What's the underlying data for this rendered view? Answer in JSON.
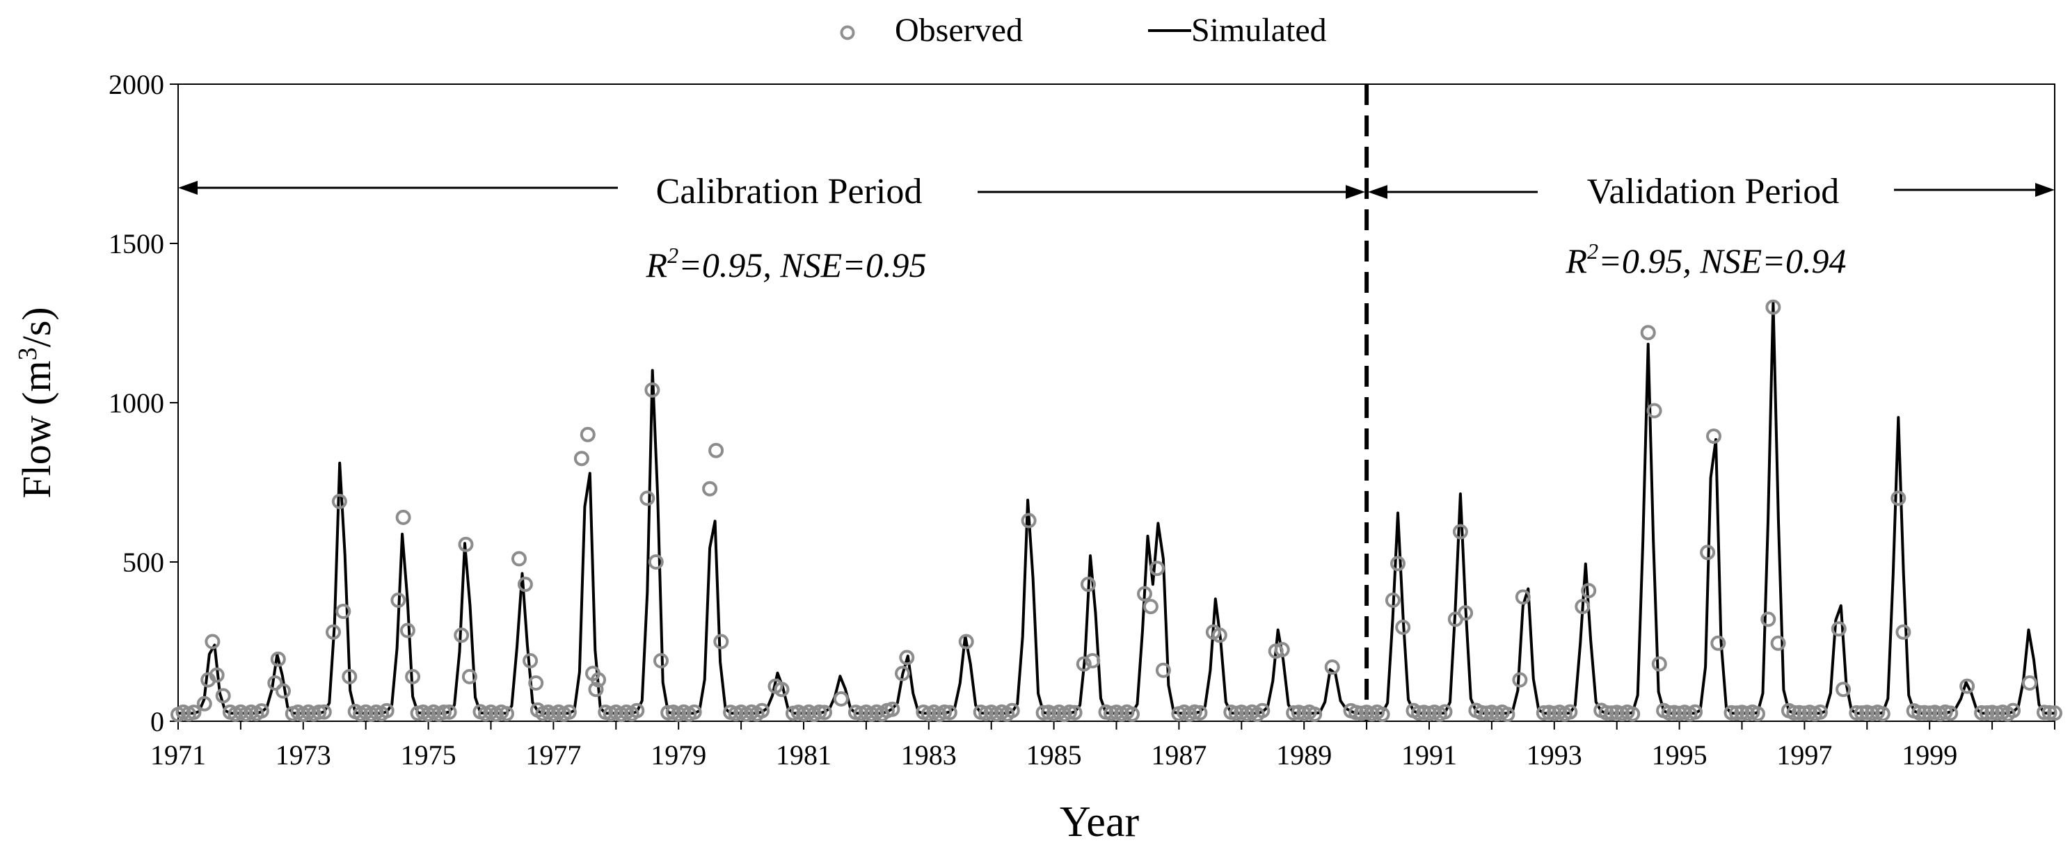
{
  "chart_data": {
    "type": "line",
    "legend": {
      "position": "top-center",
      "observed_label": "Observed",
      "simulated_label": "Simulated"
    },
    "xlabel": "Year",
    "ylabel_main": "Flow (m",
    "ylabel_sup": "3",
    "ylabel_end": "/s)",
    "xlim": [
      1971,
      2001
    ],
    "ylim": [
      0,
      2000
    ],
    "xticks": [
      1971,
      1973,
      1975,
      1977,
      1979,
      1981,
      1983,
      1985,
      1987,
      1989,
      1991,
      1993,
      1995,
      1997,
      1999
    ],
    "yticks": [
      0,
      500,
      1000,
      1500,
      2000
    ],
    "split_year": 1990,
    "calibration": {
      "label": "Calibration Period",
      "stats_r": "R",
      "stats_sup": "2",
      "stats_rest": "=0.95, NSE=0.95"
    },
    "validation": {
      "label": "Validation Period",
      "stats_r": "R",
      "stats_sup": "2",
      "stats_rest": "=0.95, NSE=0.94"
    },
    "peaks": [
      {
        "t": 1971.55,
        "sim": 250,
        "obs": [
          [
            1971.42,
            55
          ],
          [
            1971.48,
            130
          ],
          [
            1971.55,
            250
          ],
          [
            1971.62,
            145
          ],
          [
            1971.72,
            80
          ]
        ]
      },
      {
        "t": 1972.6,
        "sim": 200,
        "obs": [
          [
            1972.55,
            120
          ],
          [
            1972.6,
            195
          ],
          [
            1972.68,
            95
          ]
        ]
      },
      {
        "t": 1973.6,
        "sim": 820,
        "obs": [
          [
            1973.48,
            280
          ],
          [
            1973.58,
            690
          ],
          [
            1973.64,
            345
          ],
          [
            1973.74,
            140
          ]
        ]
      },
      {
        "t": 1974.6,
        "sim": 590,
        "obs": [
          [
            1974.52,
            380
          ],
          [
            1974.6,
            640
          ],
          [
            1974.67,
            285
          ],
          [
            1974.75,
            140
          ]
        ]
      },
      {
        "t": 1975.6,
        "sim": 560,
        "obs": [
          [
            1975.53,
            270
          ],
          [
            1975.6,
            555
          ],
          [
            1975.66,
            140
          ]
        ]
      },
      {
        "t": 1976.5,
        "sim": 450,
        "obs": [
          [
            1976.45,
            510
          ],
          [
            1976.55,
            430
          ],
          [
            1976.63,
            190
          ],
          [
            1976.72,
            120
          ]
        ]
      },
      {
        "t": 1977.55,
        "sim": 860,
        "obs": [
          [
            1977.45,
            825
          ],
          [
            1977.55,
            900
          ],
          [
            1977.63,
            150
          ],
          [
            1977.72,
            130
          ],
          [
            1977.68,
            100
          ]
        ]
      },
      {
        "t": 1978.6,
        "sim": 1120,
        "obs": [
          [
            1978.5,
            700
          ],
          [
            1978.58,
            1040
          ],
          [
            1978.64,
            500
          ],
          [
            1978.72,
            190
          ]
        ]
      },
      {
        "t": 1979.55,
        "sim": 690,
        "obs": [
          [
            1979.5,
            730
          ],
          [
            1979.6,
            850
          ],
          [
            1979.68,
            250
          ]
        ]
      },
      {
        "t": 1980.6,
        "sim": 140,
        "obs": [
          [
            1980.55,
            110
          ],
          [
            1980.65,
            100
          ]
        ]
      },
      {
        "t": 1981.6,
        "sim": 130,
        "obs": [
          [
            1981.6,
            70
          ]
        ]
      },
      {
        "t": 1982.65,
        "sim": 200,
        "obs": [
          [
            1982.58,
            150
          ],
          [
            1982.65,
            200
          ]
        ]
      },
      {
        "t": 1983.6,
        "sim": 260,
        "obs": [
          [
            1983.6,
            250
          ]
        ]
      },
      {
        "t": 1984.6,
        "sim": 700,
        "obs": [
          [
            1984.6,
            630
          ]
        ]
      },
      {
        "t": 1985.6,
        "sim": 520,
        "obs": [
          [
            1985.55,
            430
          ],
          [
            1985.48,
            180
          ],
          [
            1985.62,
            190
          ]
        ]
      },
      {
        "t": 1986.5,
        "sim": 560,
        "obs": [
          [
            1986.45,
            400
          ],
          [
            1986.55,
            360
          ]
        ]
      },
      {
        "t": 1986.7,
        "sim": 660,
        "obs": [
          [
            1986.65,
            480
          ],
          [
            1986.75,
            160
          ]
        ]
      },
      {
        "t": 1987.6,
        "sim": 380,
        "obs": [
          [
            1987.55,
            280
          ],
          [
            1987.65,
            270
          ]
        ]
      },
      {
        "t": 1988.6,
        "sim": 280,
        "obs": [
          [
            1988.55,
            220
          ],
          [
            1988.65,
            225
          ]
        ]
      },
      {
        "t": 1989.45,
        "sim": 170,
        "obs": [
          [
            1989.45,
            170
          ]
        ]
      },
      {
        "t": 1990.5,
        "sim": 640,
        "obs": [
          [
            1990.42,
            380
          ],
          [
            1990.5,
            495
          ],
          [
            1990.58,
            295
          ]
        ]
      },
      {
        "t": 1991.5,
        "sim": 700,
        "obs": [
          [
            1991.42,
            320
          ],
          [
            1991.5,
            595
          ],
          [
            1991.58,
            340
          ]
        ]
      },
      {
        "t": 1992.55,
        "sim": 450,
        "obs": [
          [
            1992.5,
            390
          ],
          [
            1992.45,
            130
          ]
        ]
      },
      {
        "t": 1993.5,
        "sim": 480,
        "obs": [
          [
            1993.45,
            360
          ],
          [
            1993.55,
            410
          ]
        ]
      },
      {
        "t": 1994.5,
        "sim": 1170,
        "obs": [
          [
            1994.5,
            1220
          ],
          [
            1994.6,
            975
          ],
          [
            1994.68,
            180
          ]
        ]
      },
      {
        "t": 1995.55,
        "sim": 980,
        "obs": [
          [
            1995.45,
            530
          ],
          [
            1995.55,
            895
          ],
          [
            1995.62,
            245
          ]
        ]
      },
      {
        "t": 1996.5,
        "sim": 1300,
        "obs": [
          [
            1996.42,
            320
          ],
          [
            1996.5,
            1300
          ],
          [
            1996.58,
            245
          ]
        ]
      },
      {
        "t": 1997.55,
        "sim": 390,
        "obs": [
          [
            1997.55,
            290
          ],
          [
            1997.62,
            100
          ]
        ]
      },
      {
        "t": 1998.5,
        "sim": 940,
        "obs": [
          [
            1998.5,
            700
          ],
          [
            1998.58,
            280
          ]
        ]
      },
      {
        "t": 1999.6,
        "sim": 110,
        "obs": [
          [
            1999.6,
            110
          ]
        ]
      },
      {
        "t": 2000.6,
        "sim": 280,
        "obs": [
          [
            2000.6,
            120
          ]
        ]
      }
    ]
  }
}
